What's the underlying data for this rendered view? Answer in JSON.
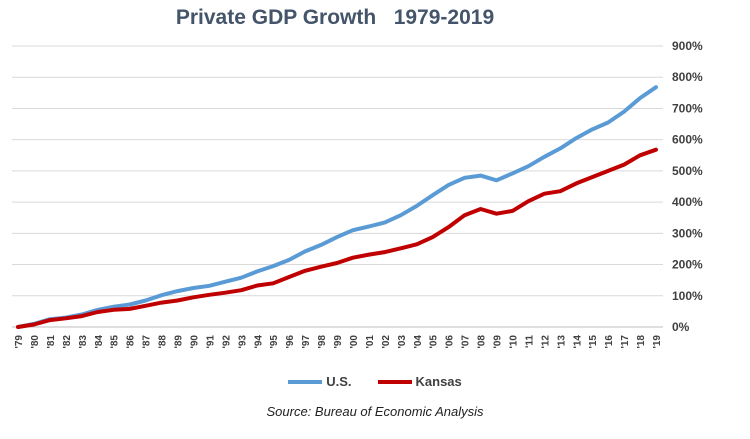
{
  "chart_data": {
    "type": "line",
    "title": "Private GDP Growth   1979-2019",
    "source": "Source: Bureau of Economic Analysis",
    "x": [
      "'79",
      "'80",
      "'81",
      "'82",
      "'83",
      "'84",
      "'85",
      "'86",
      "'87",
      "'88",
      "'89",
      "'90",
      "'91",
      "'92",
      "'93",
      "'94",
      "'95",
      "'96",
      "'97",
      "'98",
      "'99",
      "'00",
      "'01",
      "'02",
      "'03",
      "'04",
      "'05",
      "'06",
      "'07",
      "'08",
      "'09",
      "'10",
      "'11",
      "'12",
      "'13",
      "'14",
      "'15",
      "'16",
      "'17",
      "'18",
      "'19"
    ],
    "y_ticks": [
      "0%",
      "100%",
      "200%",
      "300%",
      "400%",
      "500%",
      "600%",
      "700%",
      "800%",
      "900%"
    ],
    "ylim": [
      0,
      900
    ],
    "grid": true,
    "legend_position": "bottom",
    "series": [
      {
        "name": "U.S.",
        "color": "#5b9bd5",
        "values": [
          0,
          10,
          25,
          30,
          40,
          55,
          65,
          72,
          85,
          102,
          115,
          125,
          132,
          145,
          158,
          178,
          195,
          215,
          242,
          263,
          288,
          310,
          322,
          335,
          358,
          388,
          422,
          455,
          478,
          485,
          470,
          492,
          515,
          545,
          572,
          605,
          633,
          655,
          690,
          733,
          768
        ]
      },
      {
        "name": "Kansas",
        "color": "#c00000",
        "values": [
          0,
          8,
          22,
          28,
          35,
          48,
          55,
          58,
          68,
          78,
          85,
          95,
          103,
          110,
          118,
          133,
          140,
          160,
          180,
          193,
          205,
          222,
          232,
          240,
          252,
          265,
          288,
          320,
          358,
          378,
          363,
          372,
          403,
          427,
          435,
          460,
          480,
          500,
          520,
          550,
          568
        ]
      }
    ]
  }
}
